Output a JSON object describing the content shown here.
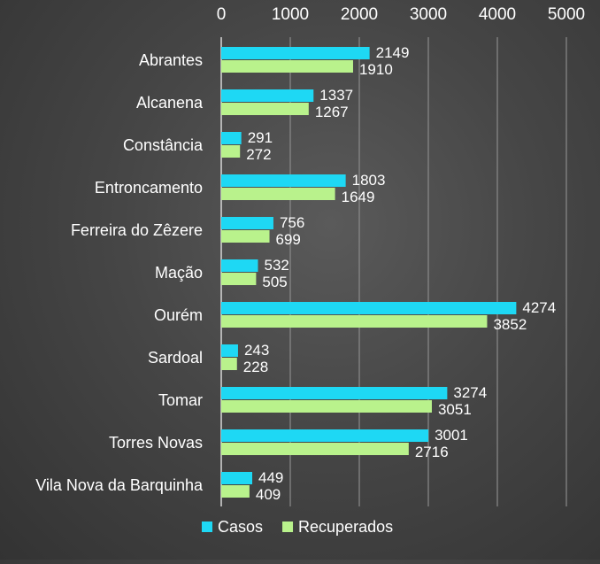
{
  "chart_data": {
    "type": "bar",
    "orientation": "horizontal",
    "categories": [
      "Abrantes",
      "Alcanena",
      "Constância",
      "Entroncamento",
      "Ferreira do Zêzere",
      "Mação",
      "Ourém",
      "Sardoal",
      "Tomar",
      "Torres Novas",
      "Vila Nova da Barquinha"
    ],
    "series": [
      {
        "name": "Casos",
        "values": [
          2149,
          1337,
          291,
          1803,
          756,
          532,
          4274,
          243,
          3274,
          3001,
          449
        ],
        "color": "#1ed8f4"
      },
      {
        "name": "Recuperados",
        "values": [
          1910,
          1267,
          272,
          1649,
          699,
          505,
          3852,
          228,
          3051,
          2716,
          409
        ],
        "color": "#b9f28c"
      }
    ],
    "xlim": [
      0,
      5000
    ],
    "xticks": [
      "0",
      "1000",
      "2000",
      "3000",
      "4000",
      "5000"
    ],
    "axis_position": "top",
    "grid": true,
    "legend": "bottom",
    "data_labels": true
  }
}
